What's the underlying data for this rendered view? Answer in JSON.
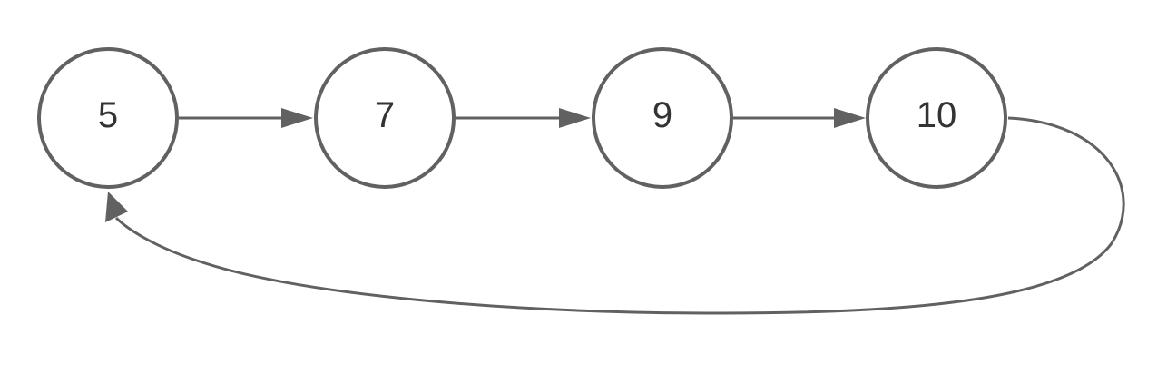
{
  "diagram": {
    "type": "circular-linked-list",
    "stroke_color": "#616161",
    "text_color": "#333333",
    "background": "#ffffff",
    "nodes": [
      {
        "id": "n1",
        "label": "5"
      },
      {
        "id": "n2",
        "label": "7"
      },
      {
        "id": "n3",
        "label": "9"
      },
      {
        "id": "n4",
        "label": "10"
      }
    ],
    "edges": [
      {
        "from": "n1",
        "to": "n2"
      },
      {
        "from": "n2",
        "to": "n3"
      },
      {
        "from": "n3",
        "to": "n4"
      },
      {
        "from": "n4",
        "to": "n1"
      }
    ]
  }
}
